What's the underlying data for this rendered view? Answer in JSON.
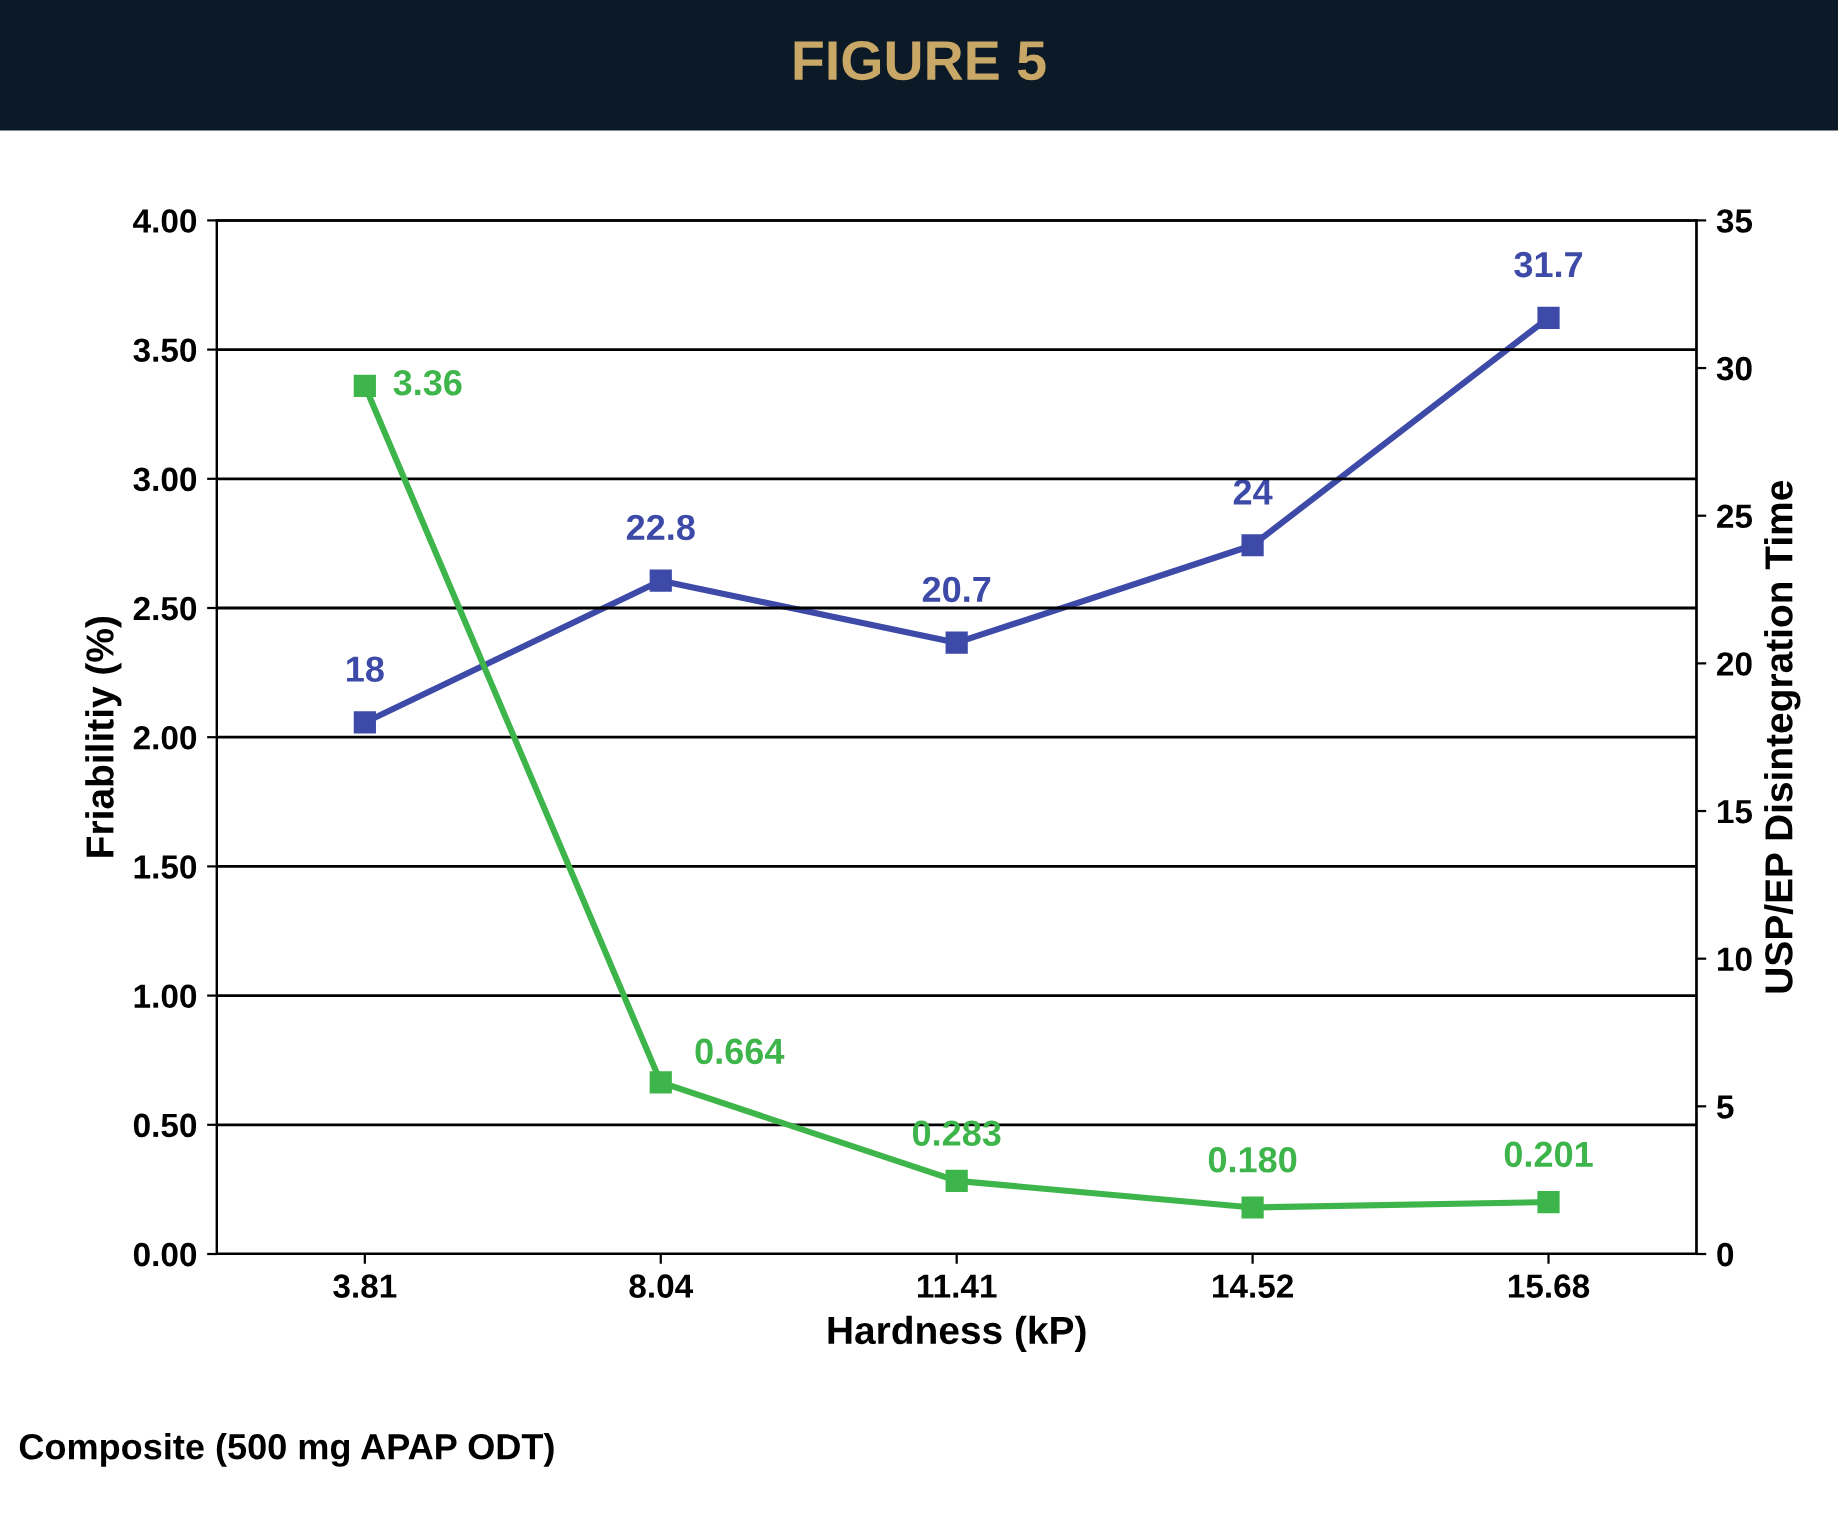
{
  "chart_data": {
    "type": "line",
    "title": "FIGURE 5",
    "xlabel": "Hardness (kP)",
    "ylabel": "Friabilitiy (%)",
    "y2label": "USP/EP Disintegration Time",
    "annotations": [
      "Composite (500 mg APAP ODT)"
    ],
    "categories": [
      "3.81",
      "8.04",
      "11.41",
      "14.52",
      "15.68"
    ],
    "series": [
      {
        "color": "#3db54a",
        "values": [
          3.36,
          0.664,
          0.283,
          0.18,
          0.201
        ],
        "value_labels": [
          "3.36",
          "0.664",
          "0.283",
          "0.180",
          "0.201"
        ]
      },
      {
        "color": "#3d4aa8",
        "axis": "y2",
        "values": [
          18,
          22.8,
          20.7,
          24,
          31.7
        ],
        "value_labels": [
          "18",
          "22.8",
          "20.7",
          "24",
          "31.7"
        ]
      }
    ],
    "ylim": [
      0,
      4
    ],
    "yticks": [
      {
        "value": 0,
        "label": "0.00"
      },
      {
        "value": 0.5,
        "label": "0.50"
      },
      {
        "value": 1,
        "label": "1.00"
      },
      {
        "value": 1.5,
        "label": "1.50"
      },
      {
        "value": 2,
        "label": "2.00"
      },
      {
        "value": 2.5,
        "label": "2.50"
      },
      {
        "value": 3,
        "label": "3.00"
      },
      {
        "value": 3.5,
        "label": "3.50"
      },
      {
        "value": 4,
        "label": "4.00"
      }
    ],
    "y2lim": [
      0,
      35
    ],
    "y2ticks": [
      0,
      5,
      10,
      15,
      20,
      25,
      30,
      35
    ],
    "grid": "y",
    "legend": false,
    "marker": "square",
    "line_style": "solid"
  }
}
